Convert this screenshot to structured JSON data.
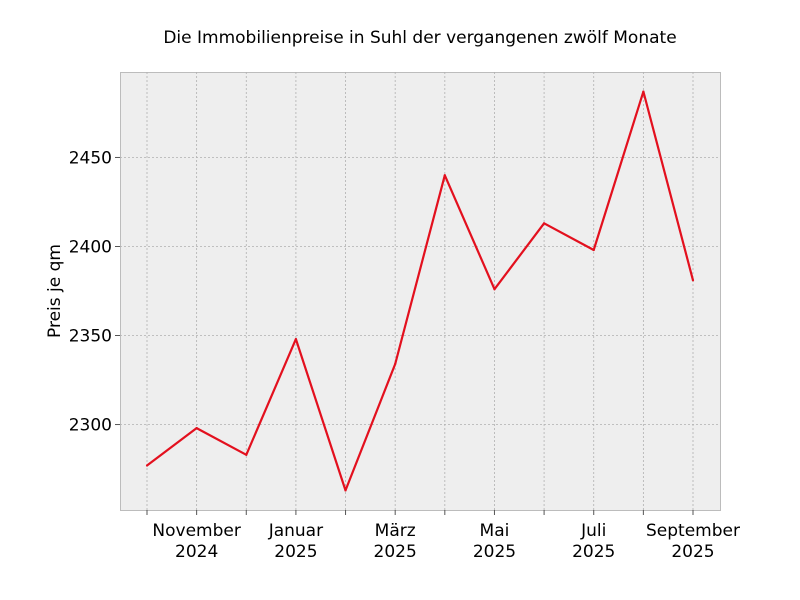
{
  "chart_data": {
    "type": "line",
    "title": "Die Immobilienpreise in Suhl der vergangenen zwölf Monate",
    "xlabel": "",
    "ylabel": "Preis je qm",
    "x": [
      "2024-10",
      "2024-11",
      "2024-12",
      "2025-01",
      "2025-02",
      "2025-03",
      "2025-04",
      "2025-05",
      "2025-06",
      "2025-07",
      "2025-08",
      "2025-09"
    ],
    "series": [
      {
        "values": [
          2277,
          2298,
          2283,
          2348,
          2263,
          2334,
          2440,
          2376,
          2413,
          2398,
          2487,
          2381
        ],
        "color": "#e3101e"
      }
    ],
    "ylim": [
      2252,
      2498
    ],
    "yticks": [
      2300,
      2350,
      2400,
      2450
    ],
    "xtick_labels": [
      {
        "index": 1,
        "line1": "November",
        "line2": "2024"
      },
      {
        "index": 3,
        "line1": "Januar",
        "line2": "2025"
      },
      {
        "index": 5,
        "line1": "März",
        "line2": "2025"
      },
      {
        "index": 7,
        "line1": "Mai",
        "line2": "2025"
      },
      {
        "index": 9,
        "line1": "Juli",
        "line2": "2025"
      },
      {
        "index": 11,
        "line1": "September",
        "line2": "2025"
      }
    ],
    "grid": true,
    "legend": "none",
    "background": "#eeeeee"
  }
}
